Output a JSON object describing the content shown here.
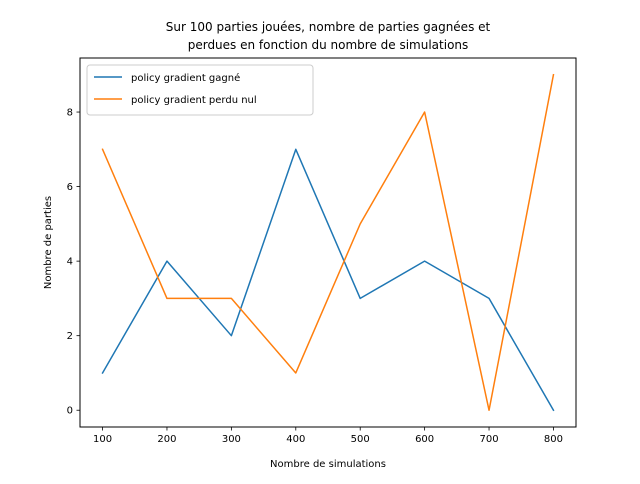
{
  "chart_data": {
    "type": "line",
    "title_lines": [
      "Sur 100 parties jouées, nombre de parties gagnées et",
      "perdues en fonction du nombre de simulations"
    ],
    "xlabel": "Nombre de simulations",
    "ylabel": "Nombre de parties",
    "x": [
      100,
      200,
      300,
      400,
      500,
      600,
      700,
      800
    ],
    "xlim": [
      65,
      835
    ],
    "ylim": [
      -0.45,
      9.45
    ],
    "xticks": [
      100,
      200,
      300,
      400,
      500,
      600,
      700,
      800
    ],
    "yticks": [
      0,
      2,
      4,
      6,
      8
    ],
    "grid": false,
    "legend_position": "top-left",
    "series": [
      {
        "name": "policy gradient gagné",
        "color": "#1f77b4",
        "values": [
          1,
          4,
          2,
          7,
          3,
          4,
          3,
          0
        ]
      },
      {
        "name": "policy gradient perdu nul",
        "color": "#ff7f0e",
        "values": [
          7,
          3,
          3,
          1,
          5,
          8,
          0,
          9
        ]
      }
    ]
  }
}
